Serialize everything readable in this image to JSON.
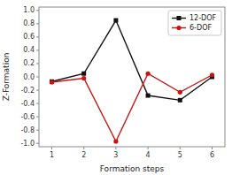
{
  "chart_data": {
    "type": "line",
    "x": [
      1,
      2,
      3,
      4,
      5,
      6
    ],
    "xlabel": "Formation steps",
    "ylabel": "Z-Formation",
    "xlim": [
      0.6,
      6.4
    ],
    "xticks": [
      1,
      2,
      3,
      4,
      5,
      6
    ],
    "ylim": [
      -1.05,
      1.05
    ],
    "yticks": [
      {
        "value": 1.0,
        "label": "1.0"
      },
      0.8,
      0.6,
      0.4,
      0.2,
      {
        "value": 0.0,
        "label": "0.0"
      },
      -0.2,
      -0.4,
      -0.6,
      -0.8,
      {
        "value": -1.0,
        "label": "-1.0"
      }
    ],
    "series": [
      {
        "name": "12-DOF",
        "color": "#111111",
        "marker": "square",
        "values": [
          -0.07,
          0.05,
          0.85,
          -0.28,
          -0.35,
          0.0
        ]
      },
      {
        "name": "6-DOF",
        "color": "#cc1111",
        "marker": "circle",
        "values": [
          -0.08,
          -0.02,
          -0.97,
          0.05,
          -0.23,
          0.03
        ]
      }
    ],
    "legend": "upper right",
    "grid": false
  }
}
